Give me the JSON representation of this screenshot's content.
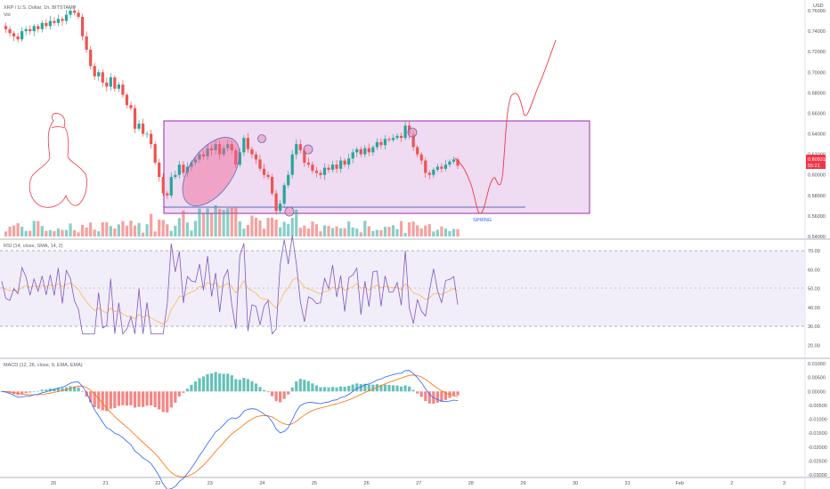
{
  "header": {
    "symbol_line": "XRP / U.S. Dollar, 1h, BITSTAMP",
    "vol_label": "Vol",
    "currency": "USD"
  },
  "price_panel": {
    "ticks": [
      "0.76000",
      "0.74000",
      "0.72000",
      "0.70000",
      "0.68000",
      "0.66000",
      "0.64000",
      "0.62000",
      "0.60000",
      "0.58000",
      "0.56000",
      "0.54000"
    ],
    "last_price": "0.60931",
    "countdown": "55:21",
    "annotation_spring": "SPRING"
  },
  "rsi_panel": {
    "title": "RSI (14, close, SMA, 14, 2)",
    "ticks": [
      "70.00",
      "60.00",
      "50.00",
      "40.00",
      "30.00",
      "20.00"
    ]
  },
  "macd_panel": {
    "title": "MACD (12, 26, close, 9, EMA, EMA)",
    "ticks": [
      "0.01000",
      "0.00500",
      "0.00000",
      "-0.00500",
      "-0.01000",
      "-0.01500",
      "-0.02000",
      "-0.02500",
      "-0.03000"
    ]
  },
  "time_axis": {
    "labels": [
      "20",
      "21",
      "22",
      "23",
      "24",
      "25",
      "26",
      "27",
      "28",
      "29",
      "30",
      "31",
      "Feb",
      "2",
      "3"
    ]
  },
  "colors": {
    "up": "#26a69a",
    "down": "#ef5350",
    "box": "#9c27b0",
    "rsi_line": "#7e57c2",
    "macd_line": "#2962ff",
    "signal_line": "#ff6d00",
    "drawing": "#f23645"
  },
  "chart_data": {
    "type": "candlestick",
    "symbol": "XRP / U.S. Dollar",
    "interval": "1h",
    "exchange": "BITSTAMP",
    "y_range": [
      0.54,
      0.76
    ],
    "x_days": [
      "20",
      "21",
      "22",
      "23",
      "24",
      "25",
      "26",
      "27"
    ],
    "close_path": [
      0.745,
      0.742,
      0.738,
      0.735,
      0.732,
      0.74,
      0.742,
      0.74,
      0.745,
      0.742,
      0.748,
      0.745,
      0.75,
      0.748,
      0.752,
      0.75,
      0.756,
      0.76,
      0.758,
      0.754,
      0.735,
      0.722,
      0.706,
      0.696,
      0.7,
      0.69,
      0.686,
      0.695,
      0.684,
      0.688,
      0.678,
      0.668,
      0.665,
      0.645,
      0.65,
      0.64,
      0.64,
      0.63,
      0.612,
      0.598,
      0.582,
      0.58,
      0.598,
      0.6,
      0.61,
      0.602,
      0.608,
      0.612,
      0.615,
      0.62,
      0.618,
      0.626,
      0.624,
      0.63,
      0.62,
      0.626,
      0.63,
      0.624,
      0.61,
      0.622,
      0.636,
      0.625,
      0.62,
      0.615,
      0.606,
      0.6,
      0.598,
      0.582,
      0.565,
      0.572,
      0.59,
      0.6,
      0.62,
      0.63,
      0.624,
      0.612,
      0.61,
      0.604,
      0.602,
      0.6,
      0.607,
      0.605,
      0.61,
      0.606,
      0.614,
      0.61,
      0.616,
      0.622,
      0.625,
      0.62,
      0.626,
      0.622,
      0.627,
      0.632,
      0.629,
      0.635,
      0.634,
      0.636,
      0.638,
      0.636,
      0.648,
      0.64,
      0.627,
      0.62,
      0.614,
      0.602,
      0.6,
      0.605,
      0.608,
      0.606,
      0.61,
      0.613,
      0.615,
      0.609
    ],
    "range_box": {
      "top": 0.656,
      "bottom": 0.555
    },
    "support_line": 0.56,
    "rsi": {
      "upper_band": 70,
      "lower_band": 30,
      "mid": 50
    },
    "macd": {
      "min": -0.03,
      "max": 0.01
    }
  }
}
